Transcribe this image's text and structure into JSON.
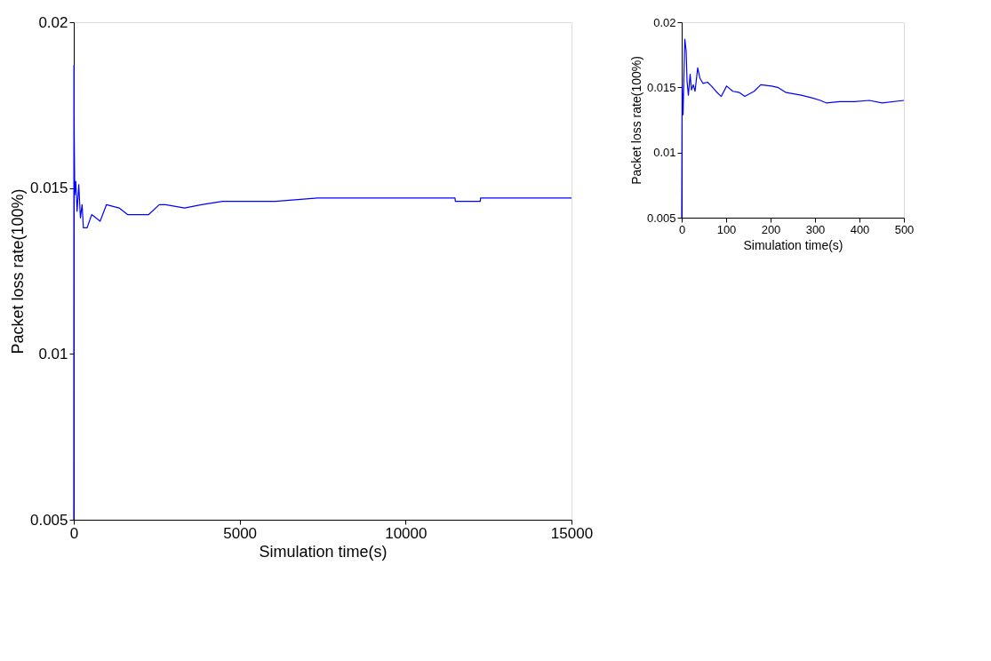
{
  "chart_data": [
    {
      "type": "line",
      "xlabel": "Simulation time(s)",
      "ylabel": "Packet loss rate(100%)",
      "xlim": [
        0,
        15000
      ],
      "ylim": [
        0.005,
        0.02
      ],
      "xticks": [
        0,
        5000,
        10000,
        15000
      ],
      "yticks": [
        0.005,
        0.01,
        0.015,
        0.02
      ],
      "grid": false,
      "series": [
        {
          "color": "#0000ff",
          "x": [
            0,
            5,
            15,
            30,
            60,
            100,
            150,
            200,
            250,
            290,
            400,
            541,
            795,
            986,
            1367,
            1622,
            1940,
            2258,
            2576,
            2767,
            3340,
            3849,
            4485,
            4867,
            6076,
            7348,
            8175,
            11490,
            11500,
            12250,
            12260,
            15000
          ],
          "values": [
            0.005,
            0.0187,
            0.0165,
            0.0148,
            0.0152,
            0.0143,
            0.0151,
            0.0141,
            0.0145,
            0.0138,
            0.0138,
            0.0142,
            0.014,
            0.0145,
            0.0144,
            0.0142,
            0.0142,
            0.0142,
            0.0145,
            0.0145,
            0.0144,
            0.0145,
            0.0146,
            0.0146,
            0.0146,
            0.0147,
            0.0147,
            0.0147,
            0.0146,
            0.0146,
            0.0147,
            0.0147
          ]
        }
      ]
    },
    {
      "type": "line",
      "xlabel": "Simulation time(s)",
      "ylabel": "Packet loss rate(100%)",
      "xlim": [
        0,
        500
      ],
      "ylim": [
        0.005,
        0.02
      ],
      "xticks": [
        0,
        100,
        200,
        300,
        400,
        500
      ],
      "yticks": [
        0.005,
        0.01,
        0.015,
        0.02
      ],
      "grid": false,
      "series": [
        {
          "color": "#0000ff",
          "x": [
            0,
            1,
            3,
            5,
            7,
            10,
            12,
            15,
            19,
            22,
            26,
            30,
            36,
            41,
            48,
            58,
            67,
            77,
            89,
            101,
            115,
            130,
            142,
            163,
            178,
            202,
            216,
            235,
            269,
            293,
            312,
            326,
            355,
            389,
            422,
            451,
            500
          ],
          "values": [
            0.005,
            0.0152,
            0.0129,
            0.0159,
            0.0187,
            0.0178,
            0.0155,
            0.0144,
            0.016,
            0.0148,
            0.0152,
            0.0147,
            0.0165,
            0.0157,
            0.0153,
            0.0154,
            0.0151,
            0.0147,
            0.0143,
            0.0151,
            0.0147,
            0.0146,
            0.0143,
            0.0147,
            0.0152,
            0.0151,
            0.015,
            0.0146,
            0.0144,
            0.0142,
            0.014,
            0.0138,
            0.0139,
            0.0139,
            0.014,
            0.0138,
            0.014
          ]
        }
      ]
    }
  ]
}
